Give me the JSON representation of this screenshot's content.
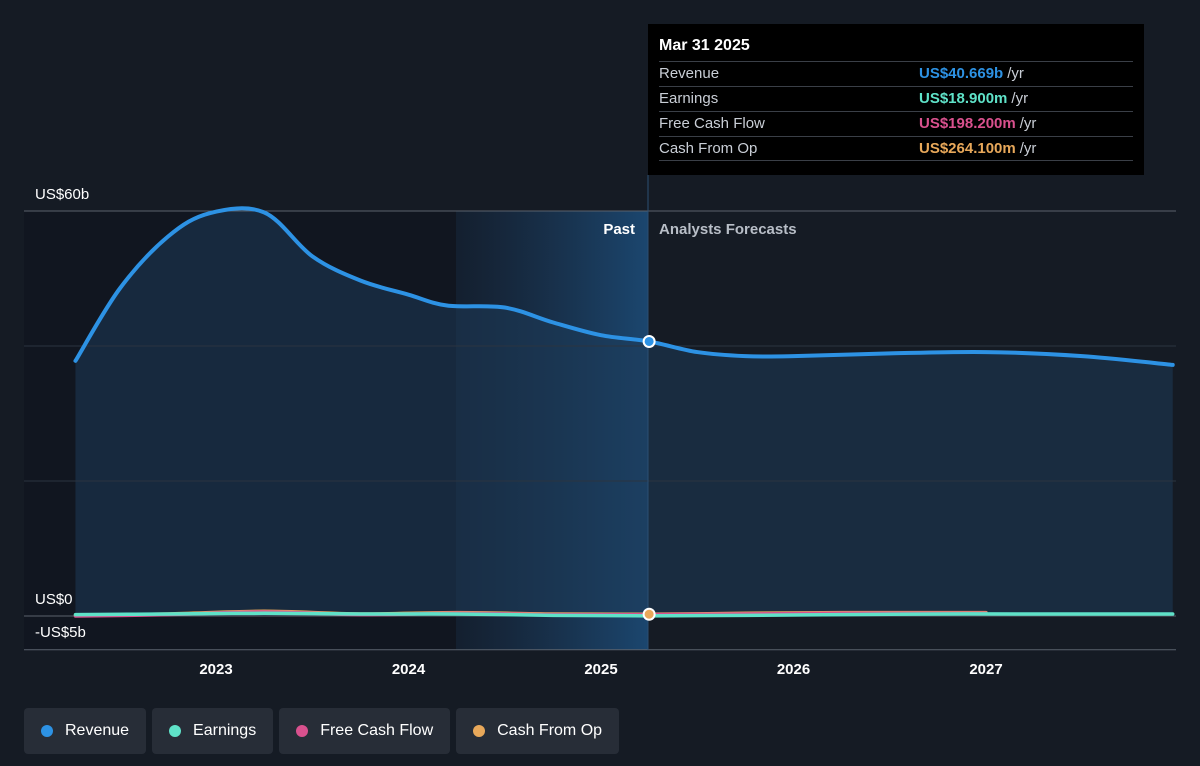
{
  "chart_data": {
    "type": "line",
    "y_unit": "US$ billions",
    "y_labels": {
      "top": "US$60b",
      "zero": "US$0",
      "bottom": "-US$5b"
    },
    "ylim": [
      -5,
      60
    ],
    "x_ticks": [
      "2023",
      "2024",
      "2025",
      "2026",
      "2027"
    ],
    "past_label": "Past",
    "forecast_label": "Analysts Forecasts",
    "series": [
      {
        "name": "Revenue",
        "color": "#2d92e4",
        "points": [
          [
            2022.27,
            37.8
          ],
          [
            2022.5,
            48.5
          ],
          [
            2022.75,
            56.2
          ],
          [
            2022.97,
            59.7
          ],
          [
            2023.25,
            59.8
          ],
          [
            2023.5,
            53.3
          ],
          [
            2023.75,
            49.7
          ],
          [
            2024.0,
            47.6
          ],
          [
            2024.2,
            46.0
          ],
          [
            2024.5,
            45.7
          ],
          [
            2024.75,
            43.5
          ],
          [
            2025.0,
            41.6
          ],
          [
            2025.25,
            40.669
          ],
          [
            2025.5,
            39.1
          ],
          [
            2025.75,
            38.5
          ],
          [
            2026.0,
            38.5
          ],
          [
            2026.5,
            38.9
          ],
          [
            2027.0,
            39.1
          ],
          [
            2027.5,
            38.5
          ],
          [
            2027.97,
            37.2
          ]
        ]
      },
      {
        "name": "Earnings",
        "color": "#5fe2c8",
        "points": [
          [
            2022.27,
            0.2
          ],
          [
            2022.75,
            0.3
          ],
          [
            2023.25,
            0.4
          ],
          [
            2023.75,
            0.3
          ],
          [
            2024.25,
            0.3
          ],
          [
            2024.75,
            0.1
          ],
          [
            2025.25,
            0.0189
          ],
          [
            2025.75,
            0.1
          ],
          [
            2026.25,
            0.2
          ],
          [
            2026.75,
            0.3
          ],
          [
            2027.25,
            0.3
          ],
          [
            2027.97,
            0.3
          ]
        ]
      },
      {
        "name": "Free Cash Flow",
        "color": "#d9518e",
        "points": [
          [
            2022.27,
            0.0
          ],
          [
            2022.75,
            0.2
          ],
          [
            2023.25,
            0.6
          ],
          [
            2023.75,
            0.2
          ],
          [
            2024.25,
            0.4
          ],
          [
            2024.75,
            0.2
          ],
          [
            2025.25,
            0.198
          ],
          [
            2025.75,
            0.3
          ],
          [
            2026.25,
            0.4
          ],
          [
            2026.75,
            0.4
          ],
          [
            2027.0,
            0.4
          ]
        ]
      },
      {
        "name": "Cash From Op",
        "color": "#e8a85a",
        "points": [
          [
            2022.27,
            0.1
          ],
          [
            2022.75,
            0.3
          ],
          [
            2023.25,
            0.7
          ],
          [
            2023.75,
            0.3
          ],
          [
            2024.25,
            0.5
          ],
          [
            2024.75,
            0.3
          ],
          [
            2025.25,
            0.264
          ],
          [
            2025.75,
            0.4
          ],
          [
            2026.25,
            0.5
          ],
          [
            2026.75,
            0.5
          ],
          [
            2027.0,
            0.5
          ]
        ]
      }
    ]
  },
  "tooltip": {
    "date": "Mar 31 2025",
    "rows": [
      {
        "label": "Revenue",
        "value": "US$40.669b",
        "unit": "/yr",
        "color": "#2d92e4"
      },
      {
        "label": "Earnings",
        "value": "US$18.900m",
        "unit": "/yr",
        "color": "#5fe2c8"
      },
      {
        "label": "Free Cash Flow",
        "value": "US$198.200m",
        "unit": "/yr",
        "color": "#d9518e"
      },
      {
        "label": "Cash From Op",
        "value": "US$264.100m",
        "unit": "/yr",
        "color": "#e8a85a"
      }
    ]
  },
  "legend": [
    {
      "label": "Revenue",
      "color": "#2d92e4"
    },
    {
      "label": "Earnings",
      "color": "#5fe2c8"
    },
    {
      "label": "Free Cash Flow",
      "color": "#d9518e"
    },
    {
      "label": "Cash From Op",
      "color": "#e8a85a"
    }
  ]
}
